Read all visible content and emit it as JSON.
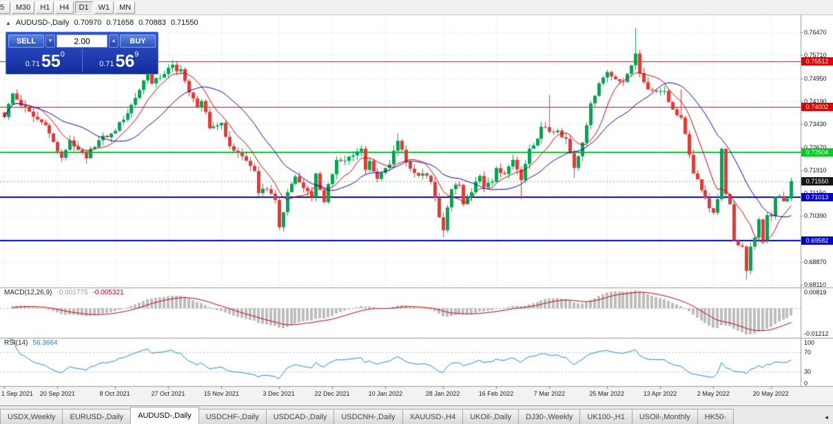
{
  "toolbar": {
    "timeframes": [
      {
        "label": "5",
        "active": false
      },
      {
        "label": "M30",
        "active": false
      },
      {
        "label": "H1",
        "active": false
      },
      {
        "label": "H4",
        "active": false
      },
      {
        "label": "D1",
        "active": true
      },
      {
        "label": "W1",
        "active": false
      },
      {
        "label": "MN",
        "active": false
      }
    ]
  },
  "chart_header": {
    "symbol": "AUDUSD-,Daily",
    "open": "0.70970",
    "high": "0.71658",
    "low": "0.70883",
    "close": "0.71550",
    "marker": "▲"
  },
  "trade_panel": {
    "sell_label": "SELL",
    "buy_label": "BUY",
    "amount": "2.00",
    "down_icon": "▼",
    "up_icon": "▲",
    "sell_price": {
      "prefix": "0.71",
      "big": "55",
      "sup": "0"
    },
    "buy_price": {
      "prefix": "0.71",
      "big": "56",
      "sup": "9"
    }
  },
  "indicators": {
    "macd": {
      "label": "MACD(12,26,9)",
      "value1": "-0.001775",
      "value2": "-0.005321",
      "axis": [
        {
          "v": 0.00819,
          "label": "0.00819"
        },
        {
          "v": -0.01212,
          "label": "-0.01212"
        }
      ]
    },
    "rsi": {
      "label": "RSI(14)",
      "value": "56.3664",
      "levels": [
        30,
        70
      ],
      "axis": [
        {
          "v": 100,
          "label": "100"
        },
        {
          "v": 70,
          "label": "70"
        },
        {
          "v": 30,
          "label": "30"
        },
        {
          "v": 0,
          "label": "0"
        }
      ]
    }
  },
  "tabs": {
    "scroll_left_icon": "◄",
    "items": [
      {
        "label": "USDX,Weekly",
        "active": false
      },
      {
        "label": "EURUSD-,Daily",
        "active": false
      },
      {
        "label": "AUDUSD-,Daily",
        "active": true
      },
      {
        "label": "USDCHF-,Daily",
        "active": false
      },
      {
        "label": "USDCAD-,Daily",
        "active": false
      },
      {
        "label": "USDCNH-,Daily",
        "active": false
      },
      {
        "label": "XAUUSD-,H4",
        "active": false
      },
      {
        "label": "UKOil-,Daily",
        "active": false
      },
      {
        "label": "DJ30-,Weekly",
        "active": false
      },
      {
        "label": "UK100-,H1",
        "active": false
      },
      {
        "label": "USOil-,Monthly",
        "active": false
      },
      {
        "label": "HK50-",
        "active": false
      }
    ]
  },
  "chart_data": {
    "type": "candlestick",
    "symbol": "AUDUSD-",
    "timeframe": "Daily",
    "title": "AUDUSD-,Daily",
    "last_candle": {
      "open": 0.7097,
      "high": 0.71658,
      "low": 0.70883,
      "close": 0.7155
    },
    "last_price": {
      "price": 0.7155,
      "label": "0.71550",
      "color": "#141414"
    },
    "y_axis": {
      "ticks": [
        0.7647,
        0.7571,
        0.7495,
        0.7419,
        0.7343,
        0.7267,
        0.7191,
        0.7115,
        0.7039,
        0.6963,
        0.6887,
        0.6811
      ]
    },
    "x_axis": {
      "ticks": [
        {
          "bar": 0,
          "label": "1 Sep 2021"
        },
        {
          "bar": 13,
          "label": "20 Sep 2021"
        },
        {
          "bar": 27,
          "label": "8 Oct 2021"
        },
        {
          "bar": 40,
          "label": "27 Oct 2021"
        },
        {
          "bar": 53,
          "label": "15 Nov 2021"
        },
        {
          "bar": 67,
          "label": "3 Dec 2021"
        },
        {
          "bar": 80,
          "label": "22 Dec 2021"
        },
        {
          "bar": 93,
          "label": "10 Jan 2022"
        },
        {
          "bar": 107,
          "label": "28 Jan 2022"
        },
        {
          "bar": 120,
          "label": "16 Feb 2022"
        },
        {
          "bar": 133,
          "label": "7 Mar 2022"
        },
        {
          "bar": 147,
          "label": "25 Mar 2022"
        },
        {
          "bar": 160,
          "label": "13 Apr 2022"
        },
        {
          "bar": 173,
          "label": "2 May 2022"
        },
        {
          "bar": 187,
          "label": "20 May 2022"
        }
      ]
    },
    "hlines": [
      {
        "price": 0.75512,
        "label": "0.75512",
        "color": "#dd0000",
        "width": 1
      },
      {
        "price": 0.74002,
        "label": "0.74002",
        "color": "#dd0000",
        "width": 1
      },
      {
        "price": 0.72504,
        "label": "0.72504",
        "color": "#00cc22",
        "width": 2
      },
      {
        "price": 0.71013,
        "label": "0.71013",
        "color": "#0000cc",
        "width": 2
      },
      {
        "price": 0.69582,
        "label": "0.69582",
        "color": "#0000cc",
        "width": 2
      }
    ],
    "bars": 193,
    "noise": 0.0009,
    "wick_amp": 0.0018,
    "close_anchors": [
      [
        0,
        0.7367
      ],
      [
        2,
        0.7445
      ],
      [
        4,
        0.7405
      ],
      [
        7,
        0.7368
      ],
      [
        10,
        0.734
      ],
      [
        13,
        0.7253
      ],
      [
        14,
        0.7232
      ],
      [
        16,
        0.729
      ],
      [
        18,
        0.7258
      ],
      [
        20,
        0.723
      ],
      [
        21,
        0.7262
      ],
      [
        23,
        0.729
      ],
      [
        26,
        0.7312
      ],
      [
        29,
        0.7358
      ],
      [
        32,
        0.743
      ],
      [
        35,
        0.7515
      ],
      [
        36,
        0.7478
      ],
      [
        38,
        0.7497
      ],
      [
        40,
        0.753
      ],
      [
        41,
        0.754
      ],
      [
        42,
        0.7518
      ],
      [
        43,
        0.7525
      ],
      [
        45,
        0.7448
      ],
      [
        47,
        0.74
      ],
      [
        48,
        0.742
      ],
      [
        50,
        0.733
      ],
      [
        53,
        0.7348
      ],
      [
        55,
        0.727
      ],
      [
        57,
        0.7248
      ],
      [
        59,
        0.7222
      ],
      [
        61,
        0.7188
      ],
      [
        62,
        0.7115
      ],
      [
        64,
        0.7128
      ],
      [
        66,
        0.7092
      ],
      [
        67,
        0.7002
      ],
      [
        68,
        0.7052
      ],
      [
        69,
        0.7118
      ],
      [
        71,
        0.717
      ],
      [
        73,
        0.7132
      ],
      [
        75,
        0.7102
      ],
      [
        76,
        0.718
      ],
      [
        77,
        0.7125
      ],
      [
        78,
        0.7085
      ],
      [
        79,
        0.7145
      ],
      [
        81,
        0.7225
      ],
      [
        83,
        0.7222
      ],
      [
        85,
        0.724
      ],
      [
        87,
        0.7262
      ],
      [
        88,
        0.7192
      ],
      [
        89,
        0.7222
      ],
      [
        91,
        0.7162
      ],
      [
        92,
        0.7182
      ],
      [
        94,
        0.721
      ],
      [
        96,
        0.7288
      ],
      [
        98,
        0.7218
      ],
      [
        100,
        0.7182
      ],
      [
        102,
        0.718
      ],
      [
        104,
        0.7152
      ],
      [
        106,
        0.7035
      ],
      [
        107,
        0.6992
      ],
      [
        108,
        0.7068
      ],
      [
        109,
        0.7128
      ],
      [
        111,
        0.7142
      ],
      [
        112,
        0.7078
      ],
      [
        114,
        0.7118
      ],
      [
        116,
        0.7172
      ],
      [
        117,
        0.7135
      ],
      [
        119,
        0.7152
      ],
      [
        120,
        0.7198
      ],
      [
        122,
        0.7178
      ],
      [
        124,
        0.7225
      ],
      [
        126,
        0.7158
      ],
      [
        128,
        0.7262
      ],
      [
        130,
        0.7295
      ],
      [
        131,
        0.7335
      ],
      [
        133,
        0.7318
      ],
      [
        135,
        0.7322
      ],
      [
        137,
        0.7295
      ],
      [
        139,
        0.7198
      ],
      [
        141,
        0.7282
      ],
      [
        143,
        0.7412
      ],
      [
        145,
        0.7478
      ],
      [
        147,
        0.7516
      ],
      [
        149,
        0.7492
      ],
      [
        151,
        0.7483
      ],
      [
        153,
        0.7538
      ],
      [
        154,
        0.7577
      ],
      [
        155,
        0.7512
      ],
      [
        157,
        0.7458
      ],
      [
        159,
        0.7452
      ],
      [
        161,
        0.7453
      ],
      [
        163,
        0.7392
      ],
      [
        165,
        0.7365
      ],
      [
        167,
        0.7242
      ],
      [
        168,
        0.718
      ],
      [
        170,
        0.7125
      ],
      [
        171,
        0.7098
      ],
      [
        172,
        0.7065
      ],
      [
        173,
        0.705
      ],
      [
        174,
        0.7095
      ],
      [
        175,
        0.7262
      ],
      [
        176,
        0.7112
      ],
      [
        177,
        0.7078
      ],
      [
        178,
        0.6958
      ],
      [
        179,
        0.6942
      ],
      [
        180,
        0.6938
      ],
      [
        181,
        0.6858
      ],
      [
        182,
        0.6938
      ],
      [
        183,
        0.6968
      ],
      [
        184,
        0.7028
      ],
      [
        185,
        0.6958
      ],
      [
        186,
        0.7042
      ],
      [
        187,
        0.7038
      ],
      [
        188,
        0.7102
      ],
      [
        189,
        0.7105
      ],
      [
        190,
        0.7088
      ],
      [
        191,
        0.7097
      ],
      [
        192,
        0.7155
      ]
    ],
    "wick_overrides": {
      "36": [
        0.7547,
        null
      ],
      "41": [
        0.7555,
        null
      ],
      "67": [
        null,
        0.6993
      ],
      "78": [
        null,
        0.70825
      ],
      "96": [
        0.7314,
        null
      ],
      "107": [
        null,
        0.6968
      ],
      "126": [
        null,
        0.7095
      ],
      "133": [
        0.744,
        null
      ],
      "139": [
        null,
        0.7165
      ],
      "154": [
        0.7661,
        null
      ],
      "165": [
        0.7458,
        null
      ],
      "175": [
        0.7266,
        0.7088
      ],
      "181": [
        null,
        0.6829
      ],
      "192": [
        0.71658,
        0.70883
      ]
    },
    "ma": [
      {
        "period": 8,
        "color": "#c00000"
      },
      {
        "period": 20,
        "color": "#0000b4"
      }
    ],
    "macd_range": [
      -0.01212,
      0.00819
    ],
    "colors": {
      "up": "#00a651",
      "down": "#e53935",
      "grid": "#dcdcdc",
      "bg": "#ffffff",
      "macd_hist": "#bdbdbd",
      "macd_signal": "#c00000",
      "rsi": "#1d84d8"
    }
  }
}
